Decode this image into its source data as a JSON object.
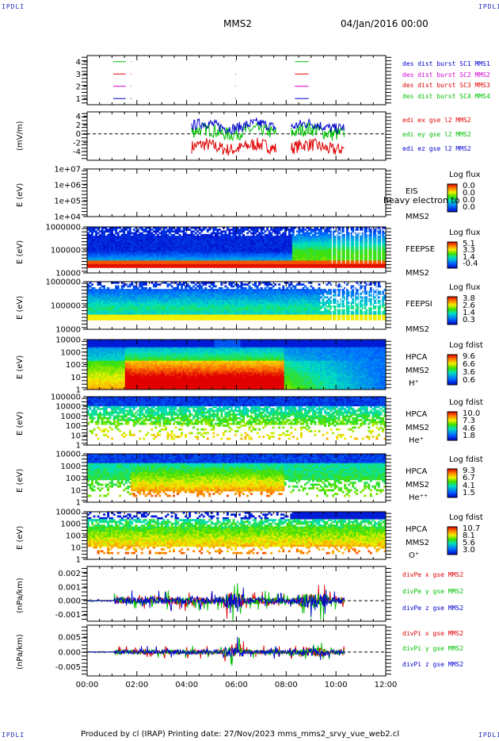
{
  "corner_label": "IPDLI",
  "header": {
    "spacecraft": "MMS2",
    "date": "04/Jan/2016 00:00"
  },
  "footer": "Produced by cl (IRAP)   Printing date: 27/Nov/2023   mms_mms2_srvy_vue_web2.cl",
  "colors": {
    "corner": "#1f2bb5",
    "red": "#e00000",
    "green": "#00c000",
    "blue": "#0000d0",
    "magenta": "#d000d0"
  },
  "chart_data": {
    "x_ticks": [
      "00:00",
      "02:00",
      "04:00",
      "06:00",
      "08:00",
      "10:00",
      "12:00"
    ],
    "x_range_hours": [
      0,
      12
    ],
    "panels": [
      {
        "id": "burst",
        "type": "line",
        "ylim": [
          0.5,
          4.5
        ],
        "y_ticks": [
          "1",
          "2",
          "3",
          "4"
        ],
        "ylabel": "",
        "legend": [
          {
            "text": "des dist burst SC1 MMS1",
            "color": "#0000d0"
          },
          {
            "text": "des dist burst SC2 MMS2",
            "color": "#d000d0"
          },
          {
            "text": "des dist burst SC3 MMS3",
            "color": "#e00000"
          },
          {
            "text": "des dist burst SC4 MMS4",
            "color": "#00c000"
          }
        ],
        "series": [
          {
            "level": 4,
            "color": "#00c000",
            "segments": [
              [
                1.05,
                1.55
              ],
              [
                1.75,
                1.78
              ],
              [
                5.95,
                5.98
              ],
              [
                8.35,
                8.9
              ]
            ]
          },
          {
            "level": 3,
            "color": "#e00000",
            "segments": [
              [
                1.05,
                1.55
              ],
              [
                1.75,
                1.78
              ],
              [
                5.95,
                5.98
              ],
              [
                8.35,
                8.9
              ]
            ]
          },
          {
            "level": 2,
            "color": "#d000d0",
            "segments": [
              [
                1.05,
                1.55
              ],
              [
                1.75,
                1.78
              ],
              [
                5.95,
                5.98
              ],
              [
                8.35,
                8.9
              ]
            ]
          },
          {
            "level": 1,
            "color": "#0000d0",
            "segments": [
              [
                1.05,
                1.55
              ],
              [
                1.75,
                1.78
              ],
              [
                5.95,
                5.98
              ],
              [
                8.35,
                8.9
              ]
            ]
          }
        ]
      },
      {
        "id": "edi",
        "type": "line",
        "ylim": [
          -6,
          5
        ],
        "y_ticks": [
          "4",
          "2",
          "0",
          "-2",
          "-4"
        ],
        "ylabel": "(mV/m)",
        "legend": [
          {
            "text": "edi ex gse l2 MMS2",
            "color": "#e00000"
          },
          {
            "text": "edi ey gse l2 MMS2",
            "color": "#00c000"
          },
          {
            "text": "edi ez gse l2 MMS2",
            "color": "#0000d0"
          }
        ],
        "active_intervals_hours": [
          [
            4.2,
            7.6
          ],
          [
            8.2,
            10.35
          ]
        ]
      },
      {
        "id": "eis",
        "type": "heatmap",
        "ylabel": "E (eV)",
        "y_ticks": [
          "1e+07",
          "1e+06",
          "1e+05",
          "1e+04"
        ],
        "side_labels": [
          "EIS",
          "MMS2"
        ],
        "overlay_text": "heavy electron to",
        "colorbar": {
          "title": "Log flux",
          "values": [
            "0.0",
            "0.0",
            "0.0",
            "0.0"
          ]
        },
        "empty": true
      },
      {
        "id": "feepse",
        "type": "heatmap",
        "ylabel": "E (eV)",
        "y_ticks": [
          "1000000",
          "100000",
          "10000"
        ],
        "side_labels": [
          "FEEPSE",
          "MMS2"
        ],
        "colorbar": {
          "title": "Log flux",
          "values": [
            "5.1",
            "3.3",
            "1.4",
            "-0.4"
          ]
        }
      },
      {
        "id": "feepsi",
        "type": "heatmap",
        "ylabel": "E (eV)",
        "y_ticks": [
          "1000000",
          "100000",
          "10000"
        ],
        "side_labels": [
          "FEEPSI",
          "MMS2"
        ],
        "colorbar": {
          "title": "Log flux",
          "values": [
            "3.8",
            "2.6",
            "1.4",
            "0.3"
          ]
        }
      },
      {
        "id": "hpca_h",
        "type": "heatmap",
        "ylabel": "E (eV)",
        "y_ticks": [
          "10000",
          "1000",
          "100",
          "10",
          "1"
        ],
        "side_labels": [
          "HPCA",
          "MMS2",
          "H⁺"
        ],
        "colorbar": {
          "title": "Log fdist",
          "values": [
            "9.6",
            "6.6",
            "3.6",
            "0.6"
          ]
        }
      },
      {
        "id": "hpca_he",
        "type": "heatmap",
        "ylabel": "E (eV)",
        "y_ticks": [
          "100000",
          "10000",
          "1000",
          "100",
          "10",
          "1"
        ],
        "side_labels": [
          "HPCA",
          "MMS2",
          "He⁺"
        ],
        "colorbar": {
          "title": "Log fdist",
          "values": [
            "10.0",
            "7.3",
            "4.6",
            "1.8"
          ]
        }
      },
      {
        "id": "hpca_hepp",
        "type": "heatmap",
        "ylabel": "E (eV)",
        "y_ticks": [
          "10000",
          "1000",
          "100",
          "10",
          "1"
        ],
        "side_labels": [
          "HPCA",
          "MMS2",
          "He⁺⁺"
        ],
        "colorbar": {
          "title": "Log fdist",
          "values": [
            "9.3",
            "6.7",
            "4.1",
            "1.5"
          ]
        }
      },
      {
        "id": "hpca_o",
        "type": "heatmap",
        "ylabel": "E (eV)",
        "y_ticks": [
          "10000",
          "1000",
          "100",
          "10",
          "1"
        ],
        "side_labels": [
          "HPCA",
          "MMS2",
          "O⁺"
        ],
        "colorbar": {
          "title": "Log fdist",
          "values": [
            "10.7",
            "8.1",
            "5.6",
            "3.0"
          ]
        }
      },
      {
        "id": "divpe",
        "type": "line",
        "ylim": [
          -0.0015,
          0.0025
        ],
        "y_ticks": [
          "0.002",
          "0.001",
          "0.000",
          "-0.001"
        ],
        "y_tick_values": [
          0.002,
          0.001,
          0.0,
          -0.001
        ],
        "ylabel": "(nPa/km)",
        "legend": [
          {
            "text": "divPe x gse MMS2",
            "color": "#e00000"
          },
          {
            "text": "divPe y gse MMS2",
            "color": "#00c000"
          },
          {
            "text": "divPe z gse MMS2",
            "color": "#0000d0"
          }
        ]
      },
      {
        "id": "divpi",
        "type": "line",
        "ylim": [
          -0.008,
          0.009
        ],
        "y_ticks": [
          "0.005",
          "0.000",
          "-0.005"
        ],
        "y_tick_values": [
          0.005,
          0.0,
          -0.005
        ],
        "ylabel": "(nPa/km)",
        "legend": [
          {
            "text": "divPi x gse MMS2",
            "color": "#e00000"
          },
          {
            "text": "divPi y gse MMS2",
            "color": "#00c000"
          },
          {
            "text": "divPi z gse MMS2",
            "color": "#0000d0"
          }
        ]
      }
    ]
  }
}
